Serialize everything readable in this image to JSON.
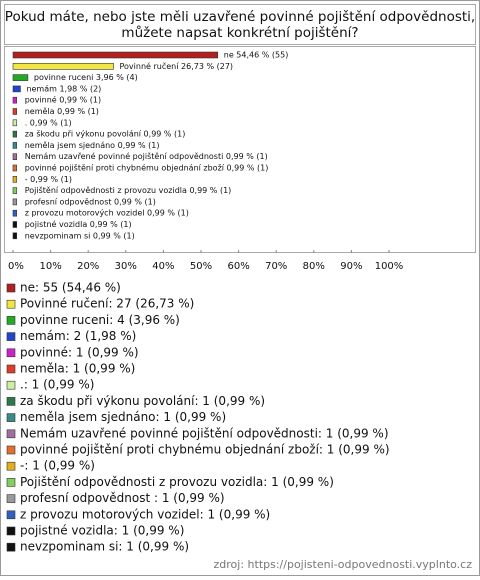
{
  "chart_data": {
    "type": "bar",
    "orientation": "horizontal",
    "title": [
      "Pokud máte, nebo jste měli uzavřené povinné pojištění odpovědnosti,",
      "můžete napsat konkrétní pojištění?"
    ],
    "categories": [
      "ne",
      "Povinné ručení",
      "povinne ruceni",
      "nemám",
      "povinné",
      "neměla",
      ".",
      "za škodu při výkonu povolání",
      "neměla jsem sjednáno",
      "Nemám uzavřené povinné pojištění odpovědnosti",
      "povinné pojištění proti chybnému objednání zboží",
      "-",
      "Pojištění odpovědnosti z provozu vozidla",
      "profesní odpovědnost",
      "z provozu motorových vozidel",
      "pojistné vozidla",
      "nevzpominam si"
    ],
    "values": [
      54.46,
      26.73,
      3.96,
      1.98,
      0.99,
      0.99,
      0.99,
      0.99,
      0.99,
      0.99,
      0.99,
      0.99,
      0.99,
      0.99,
      0.99,
      0.99,
      0.99
    ],
    "value_labels": [
      "ne 54,46 % (55)",
      "Povinné ručení 26,73 % (27)",
      "povinne ruceni 3,96 % (4)",
      "nemám 1,98 % (2)",
      "povinné 0,99 % (1)",
      "neměla 0,99 % (1)",
      ". 0,99 % (1)",
      "za škodu při výkonu povolání 0,99 % (1)",
      "neměla jsem sjednáno 0,99 % (1)",
      "Nemám uzavřené povinné pojištění odpovědnosti 0,99 % (1)",
      "povinné pojištění proti chybnému objednání zboží 0,99 % (1)",
      "- 0,99 % (1)",
      "Pojištění odpovědnosti z provozu vozidla 0,99 % (1)",
      "profesní odpovědnost  0,99 % (1)",
      "z provozu motorových vozidel 0,99 % (1)",
      "pojistné vozidla 0,99 % (1)",
      "nevzpominam si 0,99 % (1)"
    ],
    "legend_labels": [
      "ne: 55 (54,46 %)",
      "Povinné ručení: 27 (26,73 %)",
      "povinne ruceni: 4 (3,96 %)",
      "nemám: 2 (1,98 %)",
      "povinné: 1 (0,99 %)",
      "neměla: 1 (0,99 %)",
      ".: 1 (0,99 %)",
      "za škodu při výkonu povolání: 1 (0,99 %)",
      "neměla jsem sjednáno: 1 (0,99 %)",
      "Nemám uzavřené povinné pojištění odpovědnosti: 1 (0,99 %)",
      "povinné pojištění proti chybnému objednání zboží: 1 (0,99 %)",
      "-: 1 (0,99 %)",
      "Pojištění odpovědnosti z provozu vozidla: 1 (0,99 %)",
      "profesní odpovědnost : 1 (0,99 %)",
      "z provozu motorových vozidel: 1 (0,99 %)",
      "pojistné vozidla: 1 (0,99 %)",
      "nevzpominam si: 1 (0,99 %)"
    ],
    "colors": [
      "#b02020",
      "#f2e640",
      "#22aa22",
      "#2244cc",
      "#cc22cc",
      "#e03a2a",
      "#ccf0a0",
      "#2a7a4a",
      "#3a8a8a",
      "#a070a0",
      "#e07030",
      "#e0b020",
      "#80d060",
      "#999999",
      "#3060c0",
      "#111111",
      "#111111"
    ],
    "xlim": [
      0,
      100
    ],
    "xticks": [
      {
        "value": 0,
        "label": "0%"
      },
      {
        "value": 10,
        "label": "10%"
      },
      {
        "value": 20,
        "label": "20%"
      },
      {
        "value": 30,
        "label": "30%"
      },
      {
        "value": 40,
        "label": "40%"
      },
      {
        "value": 50,
        "label": "50%"
      },
      {
        "value": 60,
        "label": "60%"
      },
      {
        "value": 70,
        "label": "70%"
      },
      {
        "value": 80,
        "label": "80%"
      },
      {
        "value": 90,
        "label": "90%"
      },
      {
        "value": 100,
        "label": "100%"
      }
    ],
    "source": "zdroj: https://pojisteni-odpovednosti.vyplnto.cz"
  }
}
